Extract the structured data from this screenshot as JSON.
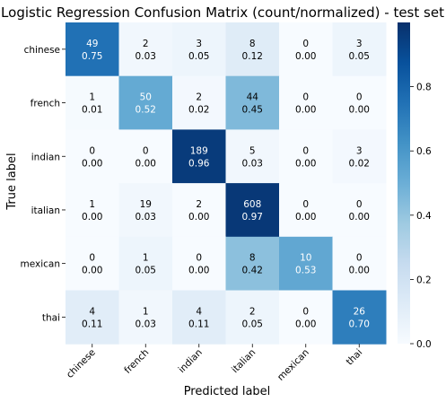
{
  "chart_data": {
    "type": "heatmap",
    "title": "Logistic Regression Confusion Matrix (count/normalized) - test set",
    "xlabel": "Predicted label",
    "ylabel": "True label",
    "x_categories": [
      "chinese",
      "french",
      "indian",
      "italian",
      "mexican",
      "thai"
    ],
    "y_categories": [
      "chinese",
      "french",
      "indian",
      "italian",
      "mexican",
      "thai"
    ],
    "counts": [
      [
        49,
        2,
        3,
        8,
        0,
        3
      ],
      [
        1,
        50,
        2,
        44,
        0,
        0
      ],
      [
        0,
        0,
        189,
        5,
        0,
        3
      ],
      [
        1,
        19,
        2,
        608,
        0,
        0
      ],
      [
        0,
        1,
        0,
        8,
        10,
        0
      ],
      [
        4,
        1,
        4,
        2,
        0,
        26
      ]
    ],
    "normalized": [
      [
        "0.75",
        "0.03",
        "0.05",
        "0.12",
        "0.00",
        "0.05"
      ],
      [
        "0.01",
        "0.52",
        "0.02",
        "0.45",
        "0.00",
        "0.00"
      ],
      [
        "0.00",
        "0.00",
        "0.96",
        "0.03",
        "0.00",
        "0.02"
      ],
      [
        "0.00",
        "0.03",
        "0.00",
        "0.97",
        "0.00",
        "0.00"
      ],
      [
        "0.00",
        "0.05",
        "0.00",
        "0.42",
        "0.53",
        "0.00"
      ],
      [
        "0.11",
        "0.03",
        "0.11",
        "0.05",
        "0.00",
        "0.70"
      ]
    ],
    "colorbar": {
      "range": [
        0,
        1
      ],
      "ticks": [
        "0.0",
        "0.2",
        "0.4",
        "0.6",
        "0.8"
      ],
      "colormap": "Blues"
    },
    "grid": false
  }
}
